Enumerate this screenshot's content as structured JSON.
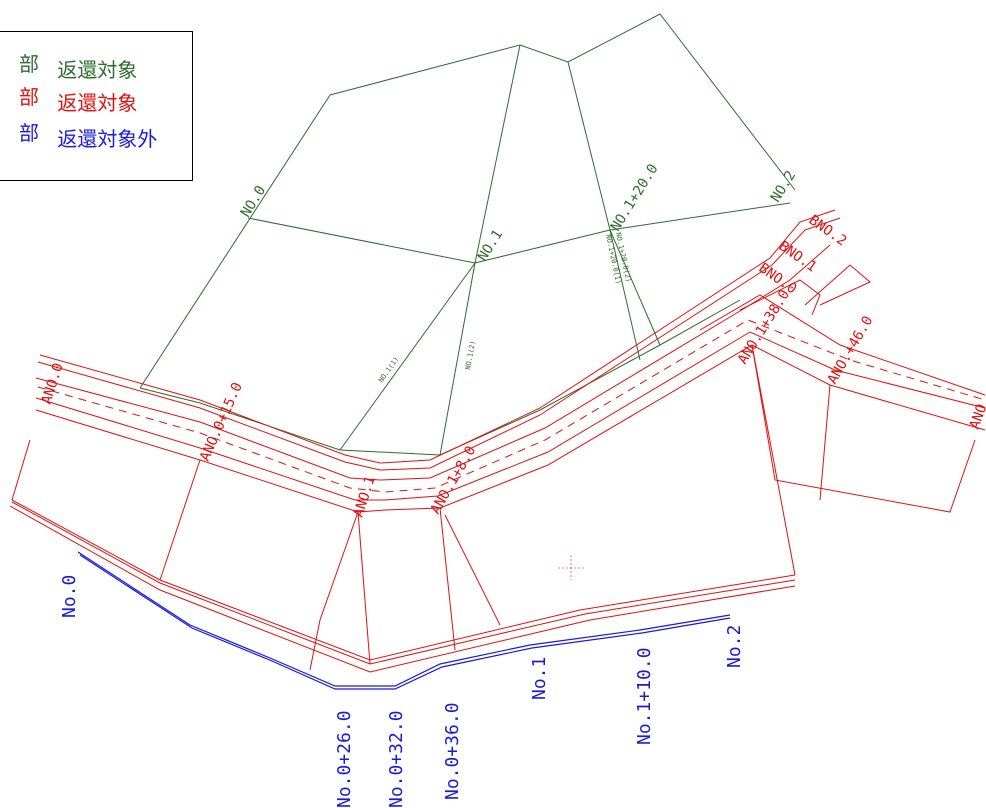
{
  "legend": {
    "items": [
      {
        "marker": "部",
        "label": "返還対象",
        "color": "#2e6b2e"
      },
      {
        "marker": "部",
        "label": "返還対象",
        "color": "#e01010"
      },
      {
        "marker": "部",
        "label": "返還対象外",
        "color": "#1a1adb"
      }
    ]
  },
  "green_labels": {
    "no0": "NO.0",
    "no1": "NO.1",
    "no1_20": "NO.1+20.0",
    "no2": "NO.2",
    "no1_1": "NO.1(1)",
    "no1_2": "NO.1(2)",
    "no1_20_1": "NO.1+20.0(1)",
    "no1_20_2": "NO.1+20.0(2)"
  },
  "red_labels": {
    "ano0": "ANO.0",
    "ano0_15": "ANO.0+15.0",
    "ano1": "ANO.1",
    "ano1_8": "ANO.1+8.0",
    "ano1_38": "ANO.1+38.0",
    "ano_46": "ANO.+46.0",
    "ano_edge": "ANO.",
    "bno0": "BNO.0",
    "bno1": "BNO.1",
    "bno2": "BNO.2"
  },
  "blue_labels": {
    "no0": "No.0",
    "no0_26": "No.0+26.0",
    "no0_32": "No.0+32.0",
    "no0_36": "No.0+36.0",
    "no1": "No.1",
    "no1_10": "No.1+10.0",
    "no2": "No.2"
  },
  "colors": {
    "green": "#2e6b2e",
    "red": "#e01010",
    "blue": "#1a1adb"
  }
}
